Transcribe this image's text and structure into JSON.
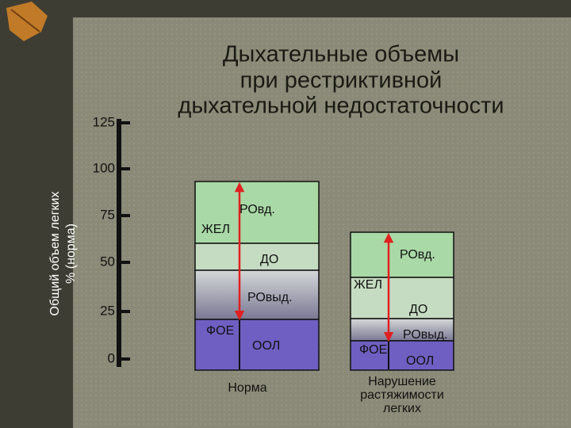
{
  "title": [
    "Дыхательные объемы",
    "при рестриктивной",
    "дыхательной недостаточности"
  ],
  "y_axis": {
    "title": [
      "Общий объем легких",
      "% (норма)"
    ],
    "ticks": [
      "125",
      "100",
      "75",
      "50",
      "25",
      "0"
    ]
  },
  "columns": [
    {
      "caption": [
        "Норма"
      ],
      "labels": {
        "rovd": "РОвд.",
        "zhel": "ЖЕЛ",
        "do": "ДО",
        "rovyd": "РОвыд.",
        "foe": "ФОЕ",
        "ool": "ООЛ"
      }
    },
    {
      "caption": [
        "Нарушение",
        "растяжимости",
        "легких"
      ],
      "labels": {
        "rovd": "РОвд.",
        "zhel": "ЖЕЛ",
        "do": "ДО",
        "rovyd": "РОвыд.",
        "foe": "ФОЕ",
        "ool": "ООЛ"
      }
    }
  ]
}
